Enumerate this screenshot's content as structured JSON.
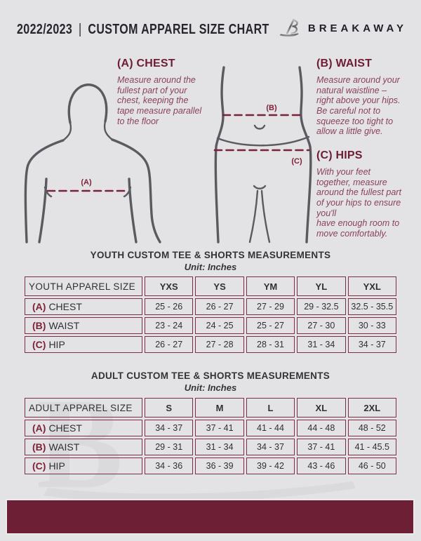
{
  "header": {
    "season": "2022/2023",
    "separator": "|",
    "title": "CUSTOM APPAREL SIZE CHART",
    "brand": "BREAKAWAY",
    "logo_icon": "stylized-b-logo"
  },
  "colors": {
    "background": "#e3e3e5",
    "maroon_dark": "#6d2035",
    "maroon_border": "#7b2e44",
    "maroon_text": "#8a4158",
    "figure_stroke": "#5a5a60",
    "dark_text": "#2f2f35"
  },
  "diagram": {
    "chest": {
      "heading": "(A) CHEST",
      "marker": "(A)",
      "body": "Measure around the\nfullest part of your\nchest, keeping the\ntape measure parallel\nto the floor"
    },
    "waist": {
      "heading": "(B) WAIST",
      "marker": "(B)",
      "body": "Measure around your\nnatural waistline –\nright above your hips.\nBe careful not to\nsqueeze too tight to\nallow a little give."
    },
    "hips": {
      "heading": "(C) HIPS",
      "marker": "(C)",
      "body": "With your feet\ntogether, measure\naround the fullest part\nof your hips to ensure\nyou'll\nhave enough room to\nmove comfortably."
    }
  },
  "youth_table": {
    "title": "YOUTH CUSTOM TEE & SHORTS MEASUREMENTS",
    "unit": "Unit: Inches",
    "header": [
      "YOUTH APPAREL SIZE",
      "YXS",
      "YS",
      "YM",
      "YL",
      "YXL"
    ],
    "rows": [
      {
        "prefix": "(A)",
        "label": "CHEST",
        "values": [
          "25 - 26",
          "26 - 27",
          "27 - 29",
          "29 - 32.5",
          "32.5 - 35.5"
        ]
      },
      {
        "prefix": "(B)",
        "label": "WAIST",
        "values": [
          "23 - 24",
          "24 - 25",
          "25 - 27",
          "27 - 30",
          "30 - 33"
        ]
      },
      {
        "prefix": "(C)",
        "label": "HIP",
        "values": [
          "26 - 27",
          "27 - 28",
          "28 - 31",
          "31 - 34",
          "34 - 37"
        ]
      }
    ]
  },
  "adult_table": {
    "title": "ADULT CUSTOM TEE & SHORTS MEASUREMENTS",
    "unit": "Unit: Inches",
    "header": [
      "ADULT APPAREL SIZE",
      "S",
      "M",
      "L",
      "XL",
      "2XL"
    ],
    "rows": [
      {
        "prefix": "(A)",
        "label": "CHEST",
        "values": [
          "34 - 37",
          "37 - 41",
          "41 - 44",
          "44 - 48",
          "48 - 52"
        ]
      },
      {
        "prefix": "(B)",
        "label": "WAIST",
        "values": [
          "29 - 31",
          "31 - 34",
          "34 - 37",
          "37 - 41",
          "41 - 45.5"
        ]
      },
      {
        "prefix": "(C)",
        "label": "HIP",
        "values": [
          "34 - 36",
          "36 - 39",
          "39 - 42",
          "43 - 46",
          "46 - 50"
        ]
      }
    ]
  }
}
